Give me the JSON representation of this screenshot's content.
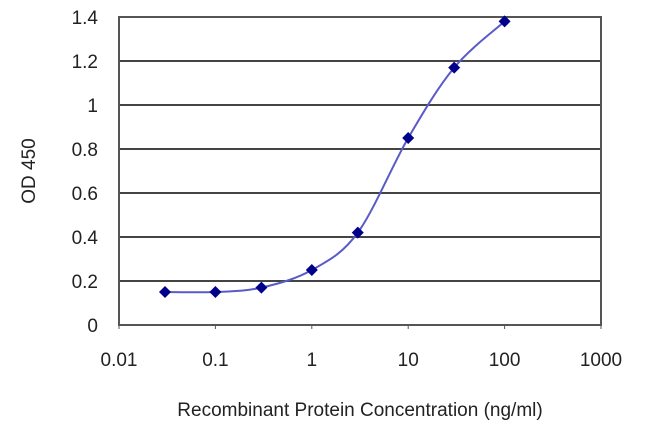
{
  "chart_data": {
    "type": "line",
    "title": "",
    "xlabel": "Recombinant Protein Concentration (ng/ml)",
    "ylabel": "OD 450",
    "xscale": "log",
    "xlim": [
      0.01,
      1000
    ],
    "ylim": [
      0,
      1.4
    ],
    "x_ticks": [
      "0.01",
      "0.1",
      "1",
      "10",
      "100",
      "1000"
    ],
    "y_ticks": [
      "0",
      "0.2",
      "0.4",
      "0.6",
      "0.8",
      "1",
      "1.2",
      "1.4"
    ],
    "grid": {
      "horizontal": true,
      "vertical": false
    },
    "legend": null,
    "series": [
      {
        "name": "OD 450",
        "color": "#00008B",
        "line_color": "#5A5AC8",
        "marker": "diamond",
        "x": [
          0.03,
          0.1,
          0.3,
          1,
          3,
          10,
          30,
          100
        ],
        "y": [
          0.15,
          0.15,
          0.17,
          0.25,
          0.42,
          0.85,
          1.17,
          1.38
        ]
      }
    ]
  },
  "colors": {
    "gridline": "#444444",
    "frame": "#555555",
    "marker": "#00008B",
    "line": "#5A5AC8"
  }
}
